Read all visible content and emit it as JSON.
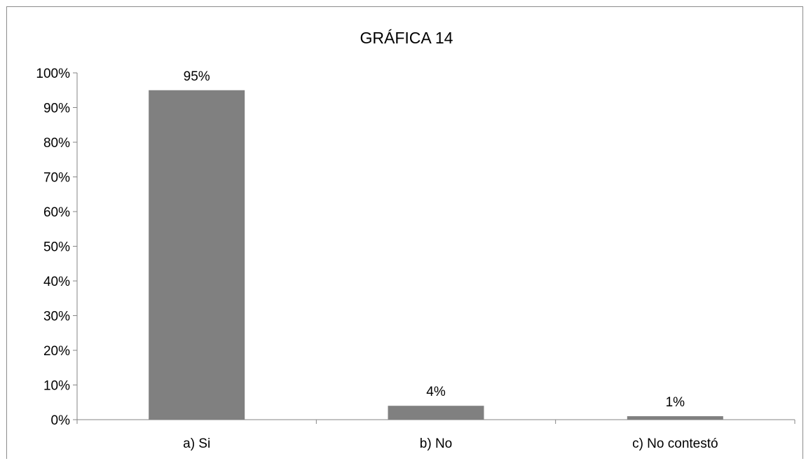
{
  "chart_data": {
    "type": "bar",
    "title": "GRÁFICA 14",
    "categories": [
      "a) Si",
      "b) No",
      "c) No contestó"
    ],
    "values": [
      95,
      4,
      1
    ],
    "value_labels": [
      "95%",
      "4%",
      "1%"
    ],
    "ylim": [
      0,
      100
    ],
    "yticks": [
      0,
      10,
      20,
      30,
      40,
      50,
      60,
      70,
      80,
      90,
      100
    ],
    "ytick_labels": [
      "0%",
      "10%",
      "20%",
      "30%",
      "40%",
      "50%",
      "60%",
      "70%",
      "80%",
      "90%",
      "100%"
    ],
    "xlabel": "",
    "ylabel": "",
    "grid": false,
    "legend": false,
    "bar_color": "#808080"
  }
}
